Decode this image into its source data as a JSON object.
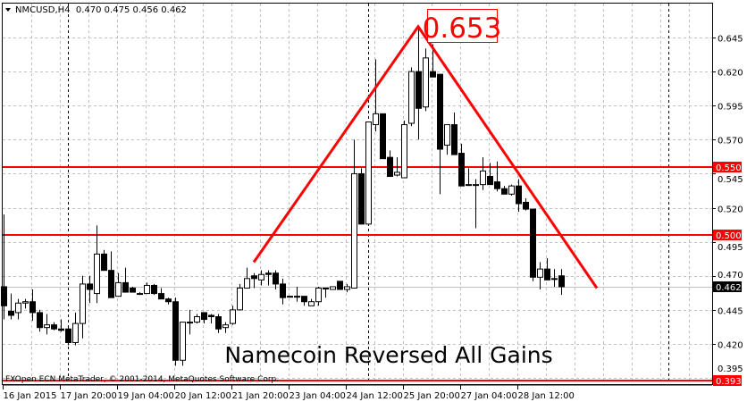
{
  "header": {
    "symbol_info": "NMCUSD,H4  0.470 0.475 0.456 0.462"
  },
  "footer": {
    "copyright": "FXOpen ECN MetaTrader, © 2001-2014, MetaQuotes Software Corp."
  },
  "colors": {
    "background": "#ffffff",
    "grid": "#c0c0c0",
    "candle_bear": "#000000",
    "candle_bull": "#ffffff",
    "annotation": "#ff0000",
    "bid_line": "#c0c0c0"
  },
  "chart_data": {
    "type": "candlestick",
    "symbol": "NMCUSD",
    "timeframe": "H4",
    "first_bar_time": "2015-01-16 12:00",
    "ohlc_last": {
      "open": 0.47,
      "high": 0.475,
      "low": 0.456,
      "close": 0.462
    },
    "ylim": [
      0.39,
      0.672
    ],
    "grid": true,
    "y_ticks": [
      "0.645",
      "0.620",
      "0.595",
      "0.570",
      "0.545",
      "0.520",
      "0.495",
      "0.470",
      "0.445",
      "0.420",
      "0.395"
    ],
    "x_ticks": [
      {
        "bar": 0,
        "label": "16 Jan 2015"
      },
      {
        "bar": 8,
        "label": "17 Jan 20:00"
      },
      {
        "bar": 16,
        "label": "19 Jan 04:00"
      },
      {
        "bar": 24,
        "label": "20 Jan 12:00"
      },
      {
        "bar": 32,
        "label": "21 Jan 20:00"
      },
      {
        "bar": 40,
        "label": "23 Jan 04:00"
      },
      {
        "bar": 48,
        "label": "24 Jan 12:00"
      },
      {
        "bar": 56,
        "label": "25 Jan 20:00"
      },
      {
        "bar": 64,
        "label": "27 Jan 04:00"
      },
      {
        "bar": 72,
        "label": "28 Jan 12:00"
      }
    ],
    "candles_ohlc": [
      [
        0.462,
        0.515,
        0.438,
        0.448
      ],
      [
        0.444,
        0.457,
        0.438,
        0.441
      ],
      [
        0.443,
        0.453,
        0.438,
        0.45
      ],
      [
        0.45,
        0.453,
        0.446,
        0.451
      ],
      [
        0.451,
        0.46,
        0.437,
        0.443
      ],
      [
        0.443,
        0.445,
        0.429,
        0.432
      ],
      [
        0.432,
        0.442,
        0.427,
        0.434
      ],
      [
        0.434,
        0.436,
        0.43,
        0.431
      ],
      [
        0.431,
        0.438,
        0.429,
        0.43
      ],
      [
        0.431,
        0.433,
        0.419,
        0.421
      ],
      [
        0.421,
        0.443,
        0.419,
        0.435
      ],
      [
        0.435,
        0.47,
        0.424,
        0.464
      ],
      [
        0.464,
        0.47,
        0.45,
        0.46
      ],
      [
        0.457,
        0.507,
        0.45,
        0.486
      ],
      [
        0.486,
        0.489,
        0.474,
        0.474
      ],
      [
        0.474,
        0.488,
        0.454,
        0.454
      ],
      [
        0.455,
        0.472,
        0.455,
        0.465
      ],
      [
        0.465,
        0.476,
        0.458,
        0.458
      ],
      [
        0.461,
        0.462,
        0.458,
        0.458
      ],
      [
        0.457,
        0.458,
        0.456,
        0.457
      ],
      [
        0.457,
        0.465,
        0.457,
        0.463
      ],
      [
        0.463,
        0.464,
        0.456,
        0.457
      ],
      [
        0.457,
        0.461,
        0.453,
        0.453
      ],
      [
        0.453,
        0.454,
        0.449,
        0.451
      ],
      [
        0.451,
        0.454,
        0.404,
        0.408
      ],
      [
        0.408,
        0.436,
        0.404,
        0.436
      ],
      [
        0.436,
        0.445,
        0.427,
        0.436
      ],
      [
        0.436,
        0.442,
        0.435,
        0.44
      ],
      [
        0.443,
        0.443,
        0.435,
        0.438
      ],
      [
        0.441,
        0.442,
        0.435,
        0.44
      ],
      [
        0.44,
        0.442,
        0.428,
        0.431
      ],
      [
        0.432,
        0.436,
        0.428,
        0.434
      ],
      [
        0.435,
        0.448,
        0.434,
        0.445
      ],
      [
        0.445,
        0.464,
        0.445,
        0.461
      ],
      [
        0.461,
        0.476,
        0.461,
        0.468
      ],
      [
        0.47,
        0.472,
        0.461,
        0.468
      ],
      [
        0.467,
        0.474,
        0.463,
        0.471
      ],
      [
        0.472,
        0.474,
        0.463,
        0.471
      ],
      [
        0.472,
        0.474,
        0.46,
        0.464
      ],
      [
        0.464,
        0.468,
        0.449,
        0.454
      ],
      [
        0.455,
        0.455,
        0.454,
        0.455
      ],
      [
        0.455,
        0.462,
        0.451,
        0.455
      ],
      [
        0.455,
        0.455,
        0.448,
        0.451
      ],
      [
        0.448,
        0.453,
        0.448,
        0.451
      ],
      [
        0.451,
        0.462,
        0.448,
        0.461
      ],
      [
        0.461,
        0.461,
        0.454,
        0.461
      ],
      [
        0.46,
        0.462,
        0.46,
        0.462
      ],
      [
        0.466,
        0.466,
        0.46,
        0.46
      ],
      [
        0.46,
        0.464,
        0.458,
        0.462
      ],
      [
        0.461,
        0.57,
        0.461,
        0.545
      ],
      [
        0.545,
        0.549,
        0.508,
        0.508
      ],
      [
        0.508,
        0.583,
        0.508,
        0.583
      ],
      [
        0.581,
        0.629,
        0.576,
        0.589
      ],
      [
        0.589,
        0.589,
        0.556,
        0.556
      ],
      [
        0.557,
        0.562,
        0.543,
        0.543
      ],
      [
        0.544,
        0.557,
        0.543,
        0.546
      ],
      [
        0.542,
        0.584,
        0.542,
        0.581
      ],
      [
        0.582,
        0.623,
        0.58,
        0.62
      ],
      [
        0.62,
        0.653,
        0.57,
        0.593
      ],
      [
        0.594,
        0.637,
        0.591,
        0.63
      ],
      [
        0.62,
        0.64,
        0.616,
        0.616
      ],
      [
        0.618,
        0.618,
        0.53,
        0.563
      ],
      [
        0.566,
        0.581,
        0.559,
        0.581
      ],
      [
        0.581,
        0.59,
        0.559,
        0.559
      ],
      [
        0.56,
        0.567,
        0.536,
        0.536
      ],
      [
        0.537,
        0.549,
        0.536,
        0.537
      ],
      [
        0.537,
        0.541,
        0.505,
        0.537
      ],
      [
        0.537,
        0.557,
        0.533,
        0.547
      ],
      [
        0.543,
        0.553,
        0.537,
        0.537
      ],
      [
        0.539,
        0.554,
        0.532,
        0.534
      ],
      [
        0.534,
        0.536,
        0.53,
        0.53
      ],
      [
        0.53,
        0.537,
        0.529,
        0.536
      ],
      [
        0.536,
        0.541,
        0.517,
        0.523
      ],
      [
        0.524,
        0.527,
        0.518,
        0.519
      ],
      [
        0.519,
        0.519,
        0.466,
        0.469
      ],
      [
        0.469,
        0.48,
        0.46,
        0.475
      ],
      [
        0.475,
        0.483,
        0.467,
        0.467
      ],
      [
        0.468,
        0.475,
        0.462,
        0.468
      ],
      [
        0.47,
        0.475,
        0.456,
        0.462
      ]
    ],
    "horizontal_levels": [
      {
        "price": 0.55,
        "label": "0.550",
        "color": "#ff0000"
      },
      {
        "price": 0.5,
        "label": "0.500",
        "color": "#ff0000"
      },
      {
        "price": 0.393,
        "label": "0.393",
        "color": "#ff0000"
      }
    ],
    "bid_price_label": "0.462",
    "trendline": {
      "color": "#ff0000",
      "points": [
        {
          "time": "2015-01-22 08:00",
          "price": 0.48
        },
        {
          "time": "2015-01-26 04:00",
          "price": 0.653
        },
        {
          "time": "2015-01-30 08:00",
          "price": 0.461
        }
      ]
    },
    "peak_label": "0.653",
    "annotation": "Namecoin Reversed All Gains"
  }
}
